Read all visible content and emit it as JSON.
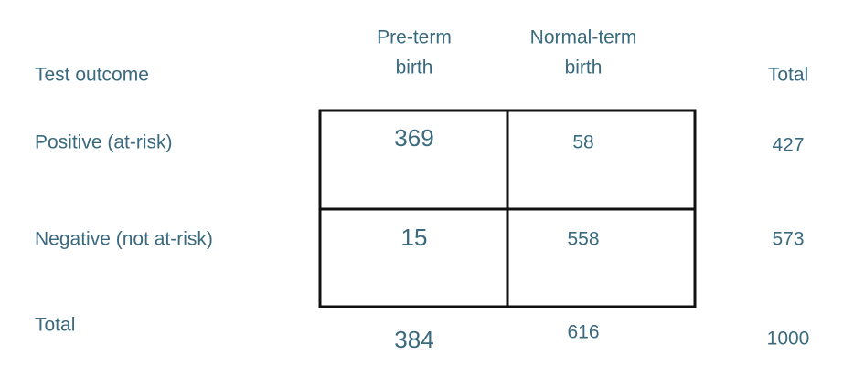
{
  "table": {
    "corner": "Test outcome",
    "columns": [
      [
        "Pre-term",
        "birth"
      ],
      [
        "Normal-term",
        "birth"
      ],
      [
        "Total"
      ]
    ],
    "rows": [
      {
        "label": "Positive (at-risk)",
        "cells": [
          369,
          58,
          427
        ]
      },
      {
        "label": "Negative (not at-risk)",
        "cells": [
          15,
          558,
          573
        ]
      },
      {
        "label": "Total",
        "cells": [
          384,
          616,
          1000
        ]
      }
    ]
  }
}
